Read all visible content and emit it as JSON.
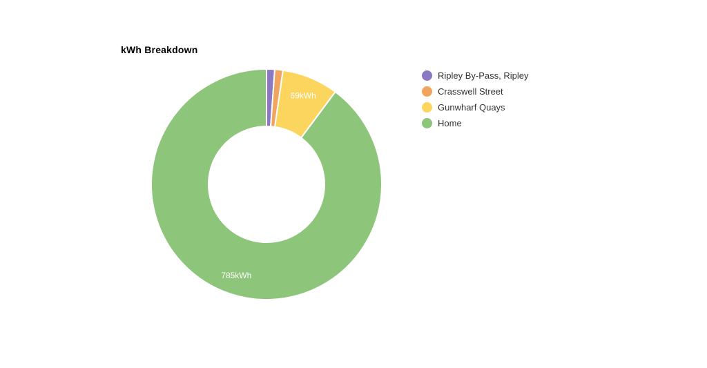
{
  "page": {
    "background": "#ffffff"
  },
  "chart_data": {
    "type": "pie",
    "subtype": "donut",
    "title": "kWh Breakdown",
    "unit": "kWh",
    "start_angle_deg": 0,
    "direction": "clockwise",
    "inner_radius_ratio": 0.5,
    "legend_position": "right",
    "data_label_color": "#ffffff",
    "slices": [
      {
        "name": "Ripley By-Pass, Ripley",
        "value": 10,
        "estimated": true,
        "color": "#8a79c2",
        "data_label": ""
      },
      {
        "name": "Crasswell Street",
        "value": 10,
        "estimated": true,
        "color": "#f0a45e",
        "data_label": ""
      },
      {
        "name": "Gunwharf Quays",
        "value": 69,
        "estimated": false,
        "color": "#fcd55f",
        "data_label": "69kWh"
      },
      {
        "name": "Home",
        "value": 785,
        "estimated": false,
        "color": "#8dc57a",
        "data_label": "785kWh"
      }
    ]
  }
}
